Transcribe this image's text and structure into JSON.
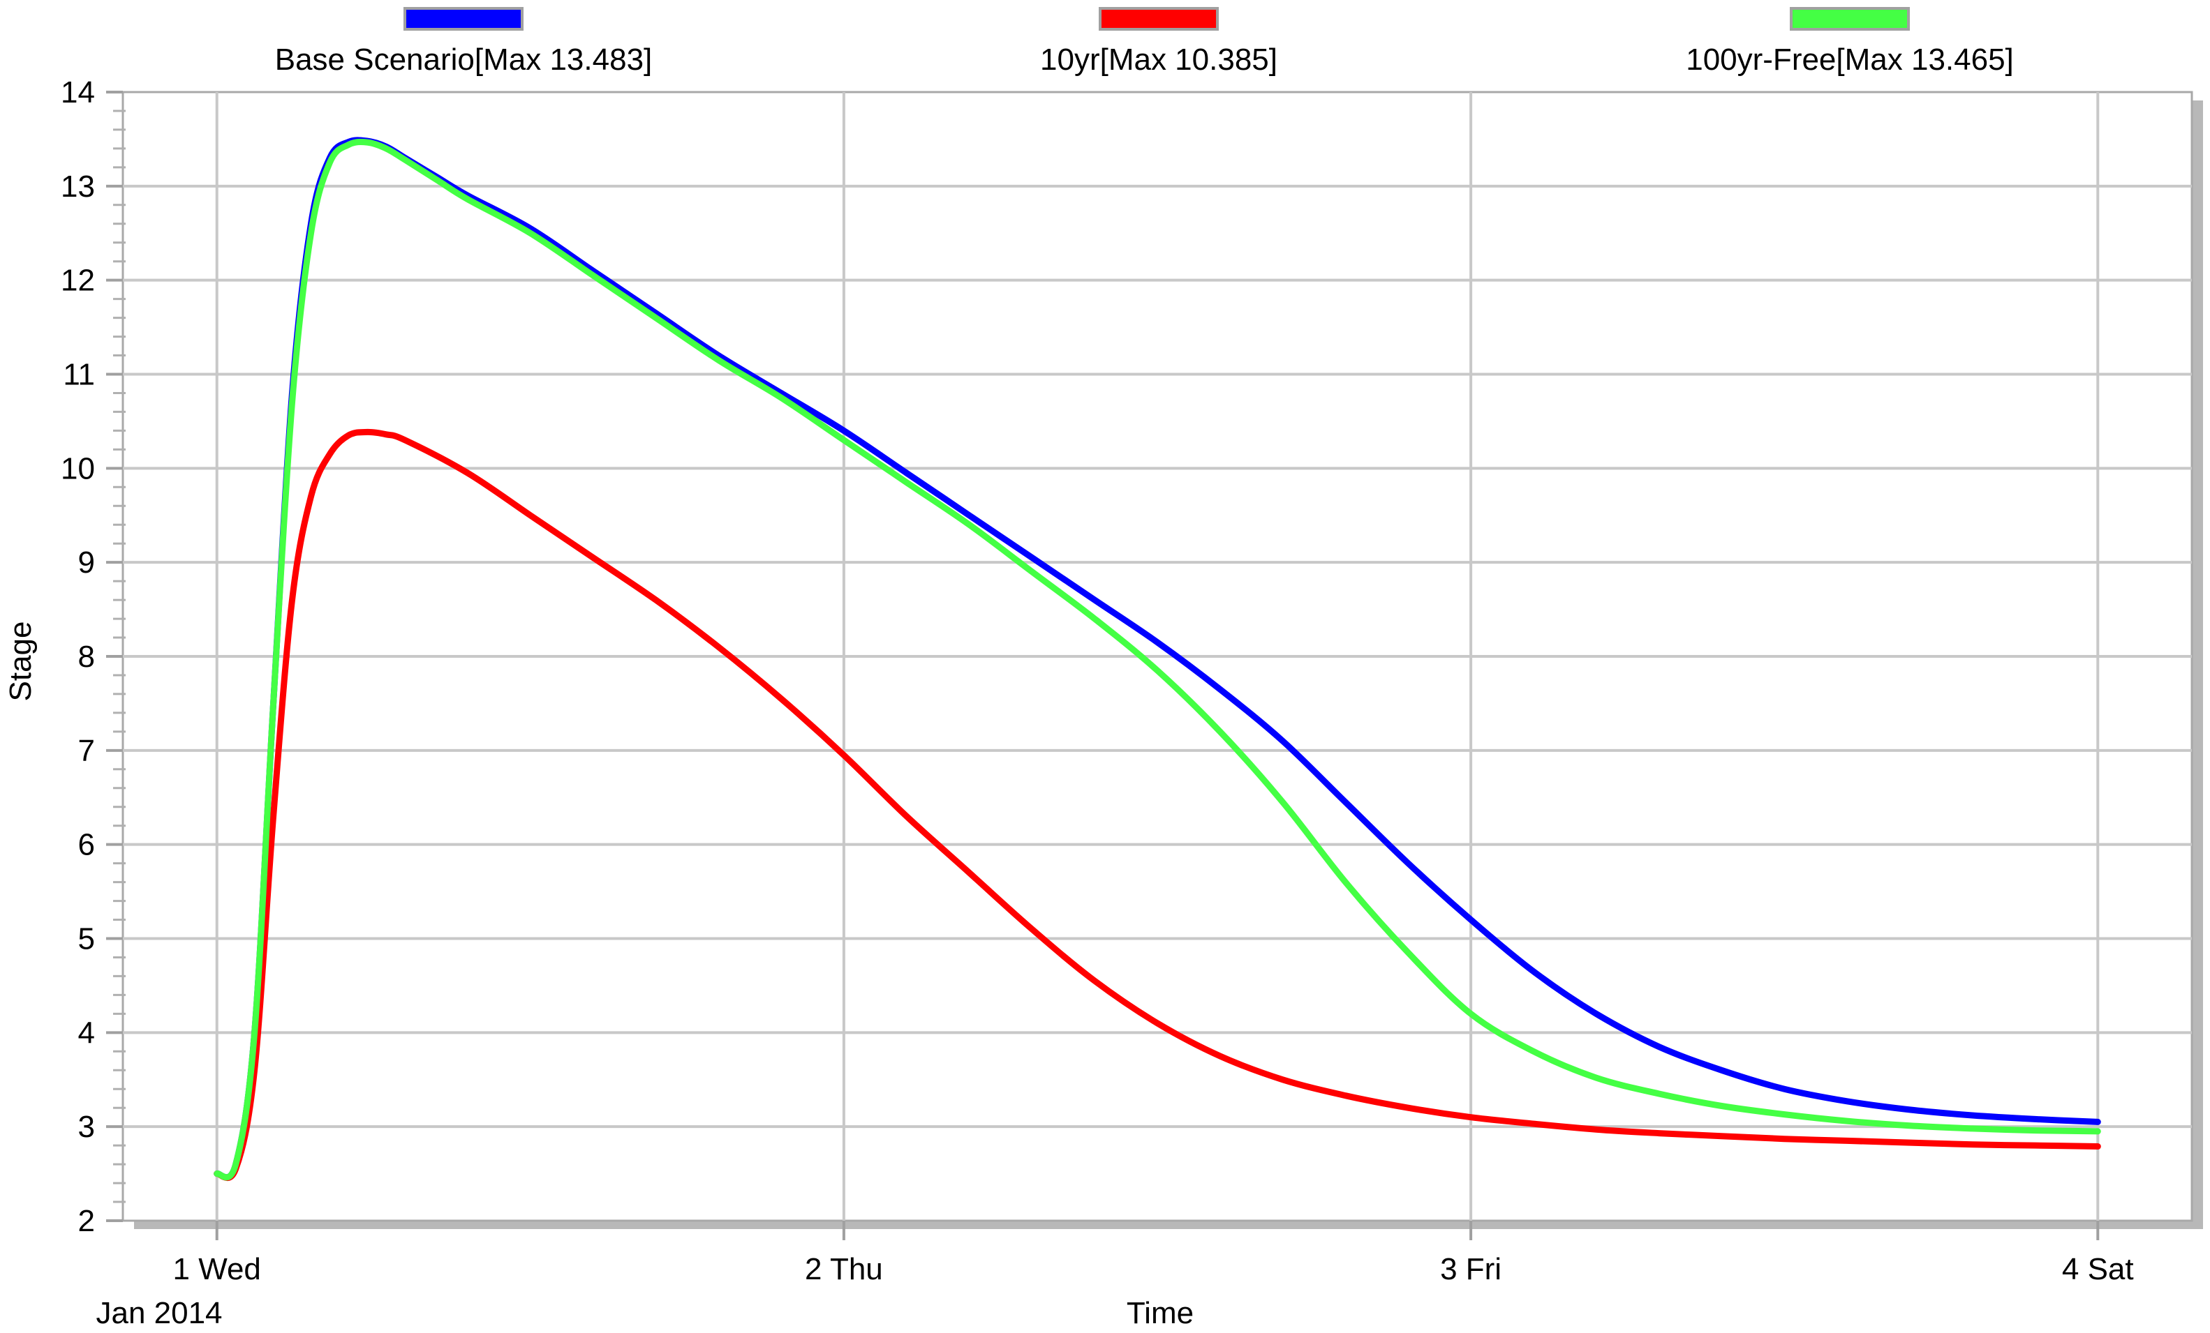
{
  "chart_data": {
    "type": "line",
    "xlabel": "Time",
    "ylabel": "Stage",
    "x_sublabel": "Jan 2014",
    "x_ticks": [
      {
        "value": 1,
        "label": "1 Wed"
      },
      {
        "value": 2,
        "label": "2 Thu"
      },
      {
        "value": 3,
        "label": "3 Fri"
      },
      {
        "value": 4,
        "label": "4 Sat"
      }
    ],
    "xlim": [
      0.85,
      4.15
    ],
    "ylim": [
      2,
      14
    ],
    "y_ticks": [
      2,
      3,
      4,
      5,
      6,
      7,
      8,
      9,
      10,
      11,
      12,
      13,
      14
    ],
    "y_minor_step": 0.2,
    "grid": true,
    "legend_position": "top",
    "series": [
      {
        "name": "Base Scenario[Max 13.483]",
        "color": "#0000ff",
        "x": [
          1.0,
          1.03,
          1.06,
          1.09,
          1.12,
          1.15,
          1.18,
          1.21,
          1.24,
          1.27,
          1.3,
          1.35,
          1.4,
          1.5,
          1.6,
          1.7,
          1.8,
          1.9,
          2.0,
          2.1,
          2.2,
          2.3,
          2.4,
          2.5,
          2.6,
          2.7,
          2.8,
          2.9,
          3.0,
          3.1,
          3.2,
          3.3,
          3.4,
          3.5,
          3.6,
          3.7,
          3.8,
          3.9,
          4.0
        ],
        "y": [
          2.5,
          2.6,
          4.0,
          7.5,
          10.8,
          12.6,
          13.3,
          13.47,
          13.48,
          13.42,
          13.3,
          13.1,
          12.9,
          12.55,
          12.1,
          11.65,
          11.2,
          10.8,
          10.4,
          9.95,
          9.5,
          9.05,
          8.6,
          8.15,
          7.65,
          7.1,
          6.45,
          5.8,
          5.2,
          4.65,
          4.2,
          3.85,
          3.6,
          3.4,
          3.27,
          3.18,
          3.12,
          3.08,
          3.05
        ]
      },
      {
        "name": "10yr[Max 10.385]",
        "color": "#ff0000",
        "x": [
          1.0,
          1.03,
          1.06,
          1.09,
          1.12,
          1.15,
          1.18,
          1.21,
          1.24,
          1.27,
          1.3,
          1.4,
          1.5,
          1.6,
          1.7,
          1.8,
          1.9,
          2.0,
          2.1,
          2.2,
          2.3,
          2.4,
          2.5,
          2.6,
          2.7,
          2.8,
          2.9,
          3.0,
          3.1,
          3.2,
          3.3,
          3.4,
          3.5,
          3.6,
          3.7,
          3.8,
          3.9,
          4.0
        ],
        "y": [
          2.5,
          2.55,
          3.6,
          6.3,
          8.6,
          9.7,
          10.15,
          10.35,
          10.385,
          10.36,
          10.3,
          9.95,
          9.5,
          9.05,
          8.6,
          8.1,
          7.55,
          6.95,
          6.3,
          5.7,
          5.1,
          4.55,
          4.1,
          3.75,
          3.5,
          3.33,
          3.2,
          3.1,
          3.03,
          2.97,
          2.93,
          2.9,
          2.87,
          2.85,
          2.83,
          2.81,
          2.8,
          2.79
        ]
      },
      {
        "name": "100yr-Free[Max 13.465]",
        "color": "#44ff44",
        "x": [
          1.0,
          1.03,
          1.06,
          1.09,
          1.12,
          1.15,
          1.18,
          1.21,
          1.24,
          1.27,
          1.3,
          1.35,
          1.4,
          1.5,
          1.6,
          1.7,
          1.8,
          1.9,
          2.0,
          2.1,
          2.2,
          2.3,
          2.4,
          2.5,
          2.6,
          2.7,
          2.8,
          2.9,
          3.0,
          3.1,
          3.2,
          3.3,
          3.4,
          3.5,
          3.6,
          3.7,
          3.8,
          3.9,
          4.0
        ],
        "y": [
          2.5,
          2.6,
          4.0,
          7.5,
          10.7,
          12.5,
          13.25,
          13.44,
          13.465,
          13.4,
          13.28,
          13.07,
          12.86,
          12.5,
          12.05,
          11.6,
          11.15,
          10.75,
          10.3,
          9.85,
          9.4,
          8.9,
          8.4,
          7.85,
          7.2,
          6.45,
          5.6,
          4.85,
          4.2,
          3.8,
          3.52,
          3.35,
          3.22,
          3.13,
          3.06,
          3.01,
          2.98,
          2.96,
          2.95
        ]
      }
    ]
  }
}
